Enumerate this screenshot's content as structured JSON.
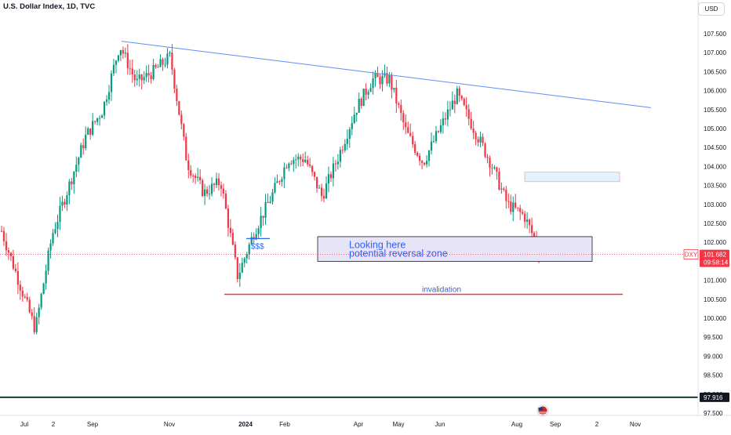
{
  "header": {
    "title": "U.S. Dollar Index, 1D, TVC",
    "currency": "USD"
  },
  "colors": {
    "up": "#089981",
    "down": "#f23645",
    "trendline": "#5b8ff9",
    "invalidation": "#f23645",
    "zone_fill": "#e8e4f7",
    "zone_stroke": "#131722",
    "box_fill": "#e3f2fd",
    "box_stroke": "#f4a8b0",
    "annotation": "#2962ff"
  },
  "chart_data": {
    "type": "candlestick",
    "title": "U.S. Dollar Index, 1D, TVC",
    "y_axis": {
      "min": 97.5,
      "max": 107.5,
      "position": "right",
      "ticks": [
        "107.500",
        "107.000",
        "106.500",
        "106.000",
        "105.500",
        "105.000",
        "104.500",
        "104.000",
        "103.500",
        "103.000",
        "102.500",
        "102.000",
        "101.500",
        "101.000",
        "100.500",
        "100.000",
        "99.500",
        "99.000",
        "98.500",
        "98.000",
        "97.500"
      ]
    },
    "x_axis": {
      "labels": [
        "Jul",
        "2",
        "Sep",
        "Nov",
        "2024",
        "Feb",
        "Apr",
        "May",
        "Jun",
        "Aug",
        "Sep",
        "2",
        "Nov"
      ]
    },
    "price_path": [
      [
        "Jun 2023",
        102.3
      ],
      [
        "Jul 2023",
        101.0
      ],
      [
        "Jul 2023",
        99.7
      ],
      [
        "Aug 2023",
        102.2
      ],
      [
        "Aug 2023",
        103.5
      ],
      [
        "Sep 2023",
        104.8
      ],
      [
        "Sep 2023",
        105.5
      ],
      [
        "Oct 2023",
        107.2
      ],
      [
        "Oct 2023",
        106.2
      ],
      [
        "Oct 2023",
        106.5
      ],
      [
        "Nov 2023",
        106.9
      ],
      [
        "Nov 2023",
        104.1
      ],
      [
        "Dec 2023",
        103.3
      ],
      [
        "Dec 2023",
        103.6
      ],
      [
        "Dec 2023",
        101.1
      ],
      [
        "Jan 2024",
        102.3
      ],
      [
        "Jan 2024",
        103.2
      ],
      [
        "Feb 2024",
        104.2
      ],
      [
        "Feb 2024",
        104.2
      ],
      [
        "Mar 2024",
        103.2
      ],
      [
        "Mar 2024",
        104.3
      ],
      [
        "Apr 2024",
        105.5
      ],
      [
        "Apr 2024",
        106.3
      ],
      [
        "May 2024",
        106.3
      ],
      [
        "May 2024",
        104.9
      ],
      [
        "Jun 2024",
        104.1
      ],
      [
        "Jun 2024",
        105.0
      ],
      [
        "Jun 2024",
        105.9
      ],
      [
        "Jul 2024",
        105.0
      ],
      [
        "Jul 2024",
        104.1
      ],
      [
        "Aug 2024",
        103.0
      ],
      [
        "Aug 2024",
        102.7
      ],
      [
        "Aug 2024",
        101.68
      ]
    ],
    "current_price": {
      "symbol": "DXY",
      "value": "101.682",
      "countdown": "09:58:14"
    },
    "bottom_price": {
      "value": "97.916"
    },
    "annotations": {
      "zone_line1": "Looking here",
      "zone_line2": "potential reversal zone",
      "liquidity": "$$$",
      "invalidation": "invalidation"
    }
  }
}
